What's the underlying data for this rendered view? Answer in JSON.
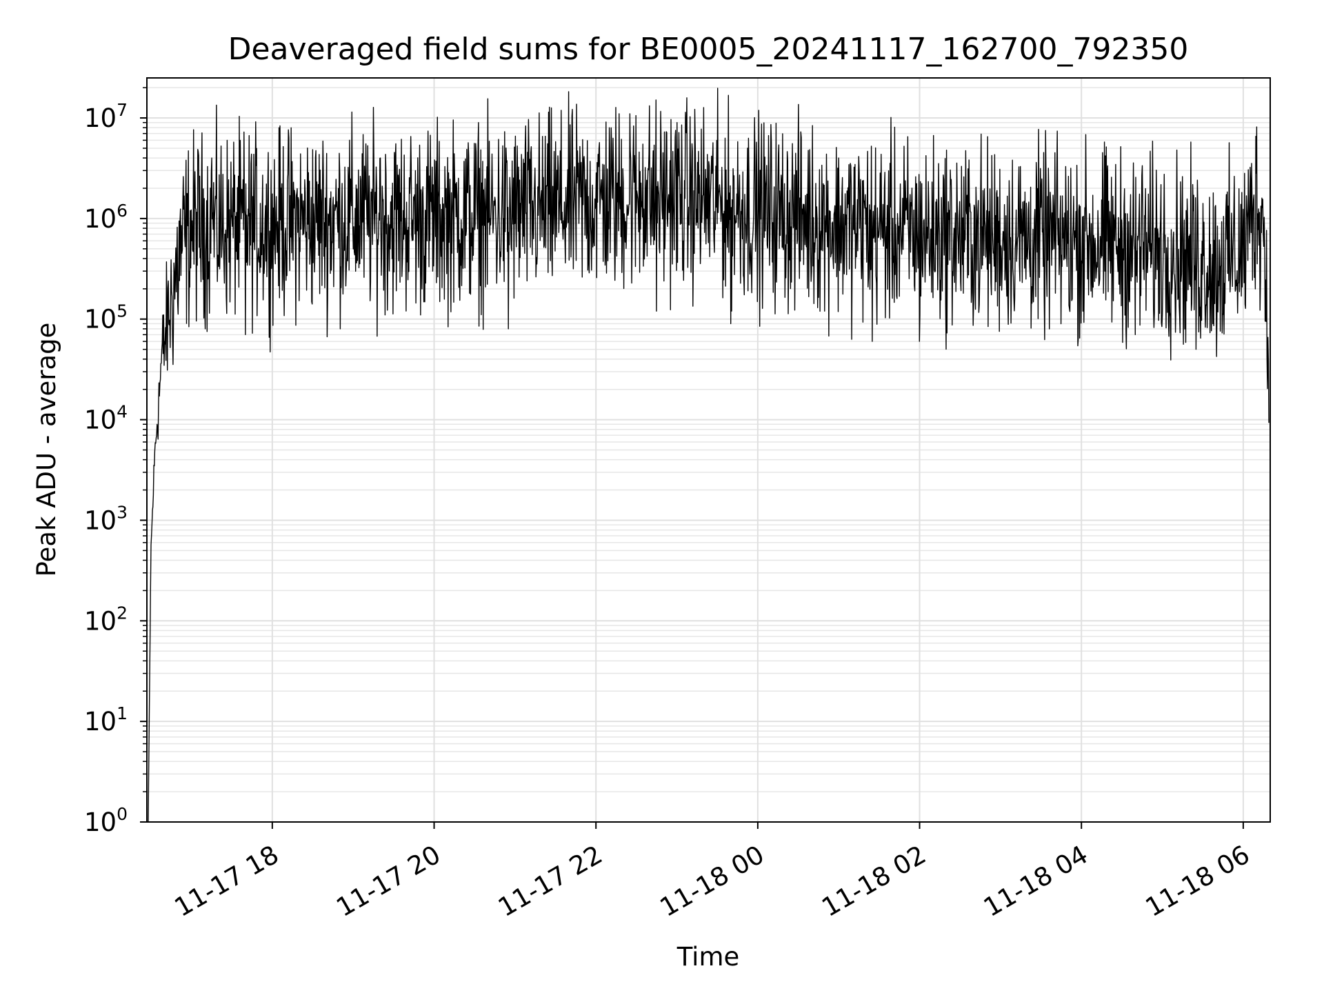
{
  "chart_data": {
    "type": "line",
    "title": "Deaveraged field sums for BE0005_20241117_162700_792350",
    "xlabel": "Time",
    "ylabel": "Peak ADU - average",
    "yscale": "log",
    "ylim": [
      1,
      25000000
    ],
    "xlim": [
      "2024-11-17 16:27",
      "2024-11-18 06:20"
    ],
    "grid": "major and minor, light gray",
    "line_color": "#000000",
    "x_ticks": [
      {
        "time": "2024-11-17 18:00",
        "label": "11-17 18"
      },
      {
        "time": "2024-11-17 20:00",
        "label": "11-17 20"
      },
      {
        "time": "2024-11-17 22:00",
        "label": "11-17 22"
      },
      {
        "time": "2024-11-18 00:00",
        "label": "11-18 00"
      },
      {
        "time": "2024-11-18 02:00",
        "label": "11-18 02"
      },
      {
        "time": "2024-11-18 04:00",
        "label": "11-18 04"
      },
      {
        "time": "2024-11-18 06:00",
        "label": "11-18 06"
      }
    ],
    "y_ticks": [
      {
        "value": 1,
        "base": "10",
        "exp": "0"
      },
      {
        "value": 10,
        "base": "10",
        "exp": "1"
      },
      {
        "value": 100,
        "base": "10",
        "exp": "2"
      },
      {
        "value": 1000,
        "base": "10",
        "exp": "3"
      },
      {
        "value": 10000,
        "base": "10",
        "exp": "4"
      },
      {
        "value": 100000,
        "base": "10",
        "exp": "5"
      },
      {
        "value": 1000000,
        "base": "10",
        "exp": "6"
      },
      {
        "value": 10000000,
        "base": "10",
        "exp": "7"
      }
    ],
    "series": [
      {
        "trend": [
          {
            "time": "2024-11-17 16:28",
            "y": 1
          },
          {
            "time": "2024-11-17 16:30",
            "y": 500
          },
          {
            "time": "2024-11-17 16:33",
            "y": 5000
          },
          {
            "time": "2024-11-17 16:38",
            "y": 40000
          },
          {
            "time": "2024-11-17 16:45",
            "y": 150000
          },
          {
            "time": "2024-11-17 16:52",
            "y": 500000
          },
          {
            "time": "2024-11-17 17:00",
            "y": 800000
          },
          {
            "time": "2024-11-17 18:00",
            "y": 900000
          },
          {
            "time": "2024-11-17 19:00",
            "y": 1000000
          },
          {
            "time": "2024-11-17 20:00",
            "y": 1000000
          },
          {
            "time": "2024-11-17 21:00",
            "y": 1100000
          },
          {
            "time": "2024-11-17 22:00",
            "y": 1500000
          },
          {
            "time": "2024-11-17 23:00",
            "y": 1700000
          },
          {
            "time": "2024-11-18 00:00",
            "y": 1200000
          },
          {
            "time": "2024-11-18 01:00",
            "y": 900000
          },
          {
            "time": "2024-11-18 02:00",
            "y": 700000
          },
          {
            "time": "2024-11-18 03:00",
            "y": 650000
          },
          {
            "time": "2024-11-18 04:00",
            "y": 600000
          },
          {
            "time": "2024-11-18 05:00",
            "y": 500000
          },
          {
            "time": "2024-11-18 05:40",
            "y": 350000
          },
          {
            "time": "2024-11-18 06:00",
            "y": 500000
          },
          {
            "time": "2024-11-18 06:10",
            "y": 1500000
          },
          {
            "time": "2024-11-18 06:15",
            "y": 1000000
          },
          {
            "time": "2024-11-18 06:19",
            "y": 35000
          }
        ],
        "noise_decades": 0.45,
        "samples": 2400,
        "peaks": [
          {
            "time": "2024-11-17 18:05",
            "y": 8000000
          },
          {
            "time": "2024-11-17 22:25",
            "y": 11000000
          },
          {
            "time": "2024-11-17 22:10",
            "y": 8000000
          },
          {
            "time": "2024-11-17 23:00",
            "y": 9000000
          },
          {
            "time": "2024-11-17 23:40",
            "y": 7000000
          },
          {
            "time": "2024-11-17 22:35",
            "y": 5500000
          },
          {
            "time": "2024-11-18 01:00",
            "y": 4000000
          },
          {
            "time": "2024-11-17 17:15",
            "y": 4000000
          },
          {
            "time": "2024-11-17 19:20",
            "y": 4000000
          }
        ],
        "dips": [
          {
            "time": "2024-11-17 20:55",
            "y": 80000
          },
          {
            "time": "2024-11-17 23:40",
            "y": 90000
          },
          {
            "time": "2024-11-17 22:45",
            "y": 120000
          },
          {
            "time": "2024-11-18 01:25",
            "y": 60000
          },
          {
            "time": "2024-11-18 02:00",
            "y": 60000
          },
          {
            "time": "2024-11-18 05:25",
            "y": 50000
          },
          {
            "time": "2024-11-18 04:40",
            "y": 70000
          },
          {
            "time": "2024-11-17 17:40",
            "y": 70000
          }
        ]
      }
    ]
  }
}
